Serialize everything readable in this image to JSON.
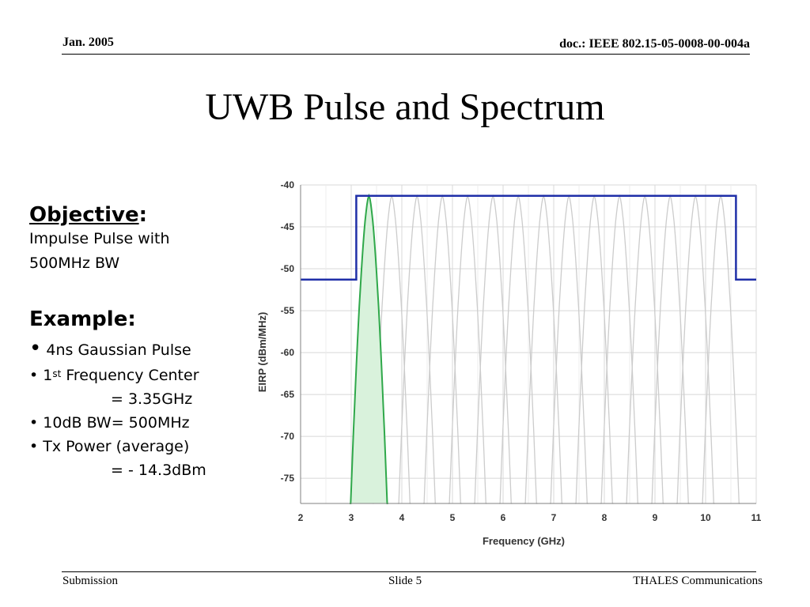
{
  "header": {
    "date": "Jan. 2005",
    "doc": "doc.: IEEE 802.15-05-0008-00-004a"
  },
  "title": "UWB Pulse and Spectrum",
  "left": {
    "objective_heading": "Objective",
    "objective_colon": ":",
    "objective_line1": "Impulse Pulse with",
    "objective_line2": "500MHz BW",
    "example_heading": "Example:",
    "bullet_symbol": "•",
    "bullet1": "4ns Gaussian Pulse",
    "bullet2_pre": "1",
    "bullet2_sup": "st",
    "bullet2_post": " Frequency Center",
    "bullet2_cont": "= 3.35GHz",
    "bullet3": "10dB BW= 500MHz",
    "bullet4": "Tx Power (average)",
    "bullet4_cont": "= - 14.3dBm"
  },
  "footer": {
    "left": "Submission",
    "center": "Slide 5",
    "right": "THALES Communications"
  },
  "chart_data": {
    "type": "line",
    "xlabel": "Frequency (GHz)",
    "ylabel": "EIRP (dBm/MHz)",
    "xlim": [
      2,
      11
    ],
    "ylim": [
      -78,
      -40
    ],
    "xticks": [
      2,
      3,
      4,
      5,
      6,
      7,
      8,
      9,
      10,
      11
    ],
    "yticks": [
      -40,
      -45,
      -50,
      -55,
      -60,
      -65,
      -70,
      -75
    ],
    "grid": true,
    "colors": {
      "mask": "#1f2fa8",
      "highlight_fill": "#d9f2dc",
      "highlight_stroke": "#2fa84a",
      "gray_lobes": "#cccccc",
      "grid": "#d8d8d8"
    },
    "series": [
      {
        "type": "step",
        "points": [
          [
            2,
            -51.3
          ],
          [
            3.1,
            -51.3
          ],
          [
            3.1,
            -41.3
          ],
          [
            10.6,
            -41.3
          ],
          [
            10.6,
            -51.3
          ],
          [
            11,
            -51.3
          ]
        ]
      },
      {
        "type": "lobe",
        "center": 3.35,
        "peak": -41.3,
        "base_low": 2.97,
        "base_high": 3.73,
        "filled": true
      }
    ],
    "gray_lobe_centers": [
      3.8,
      4.3,
      4.8,
      5.3,
      5.8,
      6.3,
      6.8,
      7.3,
      7.8,
      8.3,
      8.8,
      9.3,
      9.8,
      10.3
    ],
    "gray_lobe_half_width": 0.38,
    "gray_lobe_peak": -41.3
  }
}
